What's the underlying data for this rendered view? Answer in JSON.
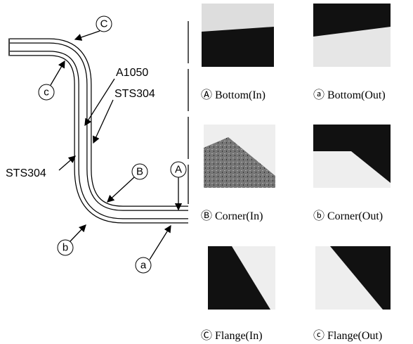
{
  "callouts": {
    "C_upper": "C",
    "c_lower": "c",
    "B_upper": "B",
    "b_lower": "b",
    "A_upper": "A",
    "a_lower": "a"
  },
  "materials": {
    "core": "A1050",
    "inner_clad": "STS304",
    "outer_clad": "STS304"
  },
  "captions": [
    "Ⓐ Bottom(In)",
    "ⓐ Bottom(Out)",
    "Ⓑ Corner(In)",
    "ⓑ Corner(Out)",
    "Ⓒ Flange(In)",
    "ⓒ Flange(Out)"
  ]
}
